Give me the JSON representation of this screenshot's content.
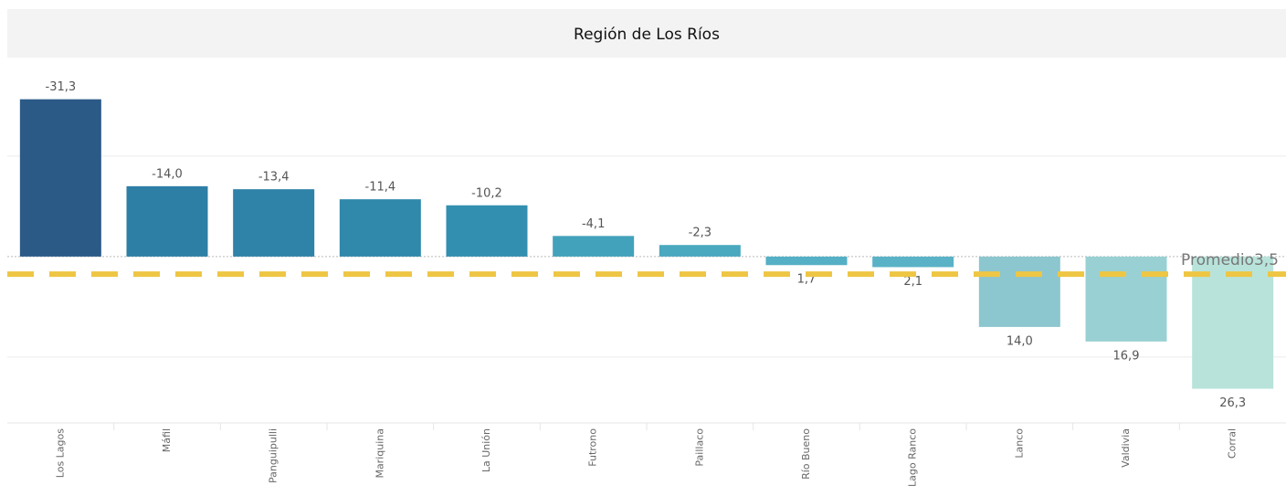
{
  "chart_data": {
    "type": "bar",
    "title": "Región de Los Ríos",
    "categories": [
      "Los Lagos",
      "Máfil",
      "Panguipulli",
      "Mariquina",
      "La Unión",
      "Futrono",
      "Paillaco",
      "Río Bueno",
      "Lago Ranco",
      "Lanco",
      "Valdivia",
      "Corral"
    ],
    "values": [
      -31.3,
      -14.0,
      -13.4,
      -11.4,
      -10.2,
      -4.1,
      -2.3,
      1.7,
      2.1,
      14.0,
      16.9,
      26.3
    ],
    "value_labels": [
      "-31,3",
      "-14,0",
      "-13,4",
      "-11,4",
      "-10,2",
      "-4,1",
      "-2,3",
      "1,7",
      "2,1",
      "14,0",
      "16,9",
      "26,3"
    ],
    "colors": [
      "#2b5a87",
      "#2e7fa6",
      "#2f82a8",
      "#3088ab",
      "#338fb0",
      "#43a2bb",
      "#4aa8bf",
      "#55afc5",
      "#5ab2c6",
      "#8cc6cf",
      "#99d0d3",
      "#b8e3da"
    ],
    "ylim": [
      -39.6,
      33.1
    ],
    "yticks": [
      -20,
      0,
      20
    ],
    "y_inverted": true,
    "grid": true,
    "reference_line": {
      "label": "Promedio",
      "value": 3.5,
      "value_label": "3,5",
      "color": "#eec643"
    }
  }
}
